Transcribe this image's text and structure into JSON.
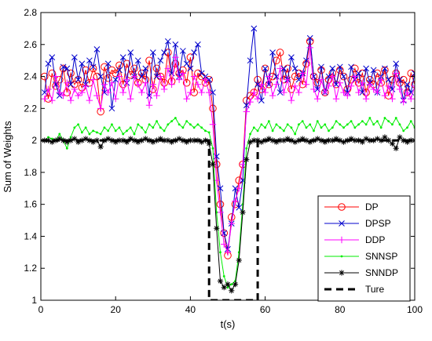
{
  "chart_data": {
    "type": "line",
    "title": "",
    "xlabel": "t(s)",
    "ylabel": "Sum of Weights",
    "xlim": [
      0,
      100
    ],
    "ylim": [
      1,
      2.8
    ],
    "x_ticks": [
      0,
      20,
      40,
      60,
      80,
      100
    ],
    "y_ticks": [
      1,
      1.2,
      1.4,
      1.6,
      1.8,
      2,
      2.2,
      2.4,
      2.6,
      2.8
    ],
    "grid": false,
    "legend_position": "bottom-right",
    "x": [
      1,
      2,
      3,
      4,
      5,
      6,
      7,
      8,
      9,
      10,
      11,
      12,
      13,
      14,
      15,
      16,
      17,
      18,
      19,
      20,
      21,
      22,
      23,
      24,
      25,
      26,
      27,
      28,
      29,
      30,
      31,
      32,
      33,
      34,
      35,
      36,
      37,
      38,
      39,
      40,
      41,
      42,
      43,
      44,
      45,
      46,
      47,
      48,
      49,
      50,
      51,
      52,
      53,
      54,
      55,
      56,
      57,
      58,
      59,
      60,
      61,
      62,
      63,
      64,
      65,
      66,
      67,
      68,
      69,
      70,
      71,
      72,
      73,
      74,
      75,
      76,
      77,
      78,
      79,
      80,
      81,
      82,
      83,
      84,
      85,
      86,
      87,
      88,
      89,
      90,
      91,
      92,
      93,
      94,
      95,
      96,
      97,
      98,
      99,
      100
    ],
    "series": [
      {
        "name": "DP",
        "color": "#ff0000",
        "marker": "circle",
        "line_style": "solid",
        "values": [
          2.4,
          2.26,
          2.42,
          2.34,
          2.38,
          2.45,
          2.3,
          2.42,
          2.35,
          2.38,
          2.33,
          2.44,
          2.36,
          2.45,
          2.4,
          2.18,
          2.46,
          2.39,
          2.44,
          2.42,
          2.47,
          2.35,
          2.48,
          2.41,
          2.45,
          2.36,
          2.42,
          2.38,
          2.5,
          2.32,
          2.45,
          2.4,
          2.36,
          2.55,
          2.37,
          2.48,
          2.42,
          2.44,
          2.36,
          2.52,
          2.3,
          2.42,
          2.4,
          2.36,
          2.38,
          2.2,
          1.85,
          1.6,
          1.42,
          1.28,
          1.52,
          1.6,
          1.75,
          1.85,
          2.25,
          2.28,
          2.3,
          2.38,
          2.32,
          2.45,
          2.35,
          2.4,
          2.5,
          2.55,
          2.38,
          2.45,
          2.32,
          2.4,
          2.42,
          2.35,
          2.48,
          2.62,
          2.4,
          2.36,
          2.44,
          2.3,
          2.38,
          2.42,
          2.35,
          2.44,
          2.4,
          2.32,
          2.38,
          2.45,
          2.36,
          2.42,
          2.3,
          2.38,
          2.35,
          2.42,
          2.36,
          2.44,
          2.28,
          2.38,
          2.42,
          2.36,
          2.38,
          2.3,
          2.42,
          2.35
        ]
      },
      {
        "name": "DPSP",
        "color": "#0000cc",
        "marker": "x",
        "line_style": "solid",
        "values": [
          2.3,
          2.48,
          2.52,
          2.35,
          2.28,
          2.46,
          2.45,
          2.35,
          2.52,
          2.38,
          2.48,
          2.35,
          2.5,
          2.46,
          2.57,
          2.4,
          2.3,
          2.48,
          2.2,
          2.38,
          2.44,
          2.52,
          2.36,
          2.55,
          2.4,
          2.5,
          2.4,
          2.45,
          2.28,
          2.55,
          2.4,
          2.5,
          2.55,
          2.62,
          2.42,
          2.6,
          2.4,
          2.56,
          2.48,
          2.45,
          2.55,
          2.6,
          2.42,
          2.4,
          2.38,
          2.3,
          1.9,
          1.7,
          1.42,
          1.32,
          1.48,
          1.7,
          1.58,
          1.75,
          2.22,
          2.5,
          2.7,
          2.35,
          2.25,
          2.45,
          2.35,
          2.55,
          2.4,
          2.3,
          2.45,
          2.38,
          2.52,
          2.45,
          2.38,
          2.42,
          2.5,
          2.64,
          2.4,
          2.32,
          2.46,
          2.3,
          2.4,
          2.45,
          2.35,
          2.46,
          2.4,
          2.3,
          2.46,
          2.38,
          2.42,
          2.3,
          2.45,
          2.36,
          2.44,
          2.3,
          2.4,
          2.45,
          2.38,
          2.32,
          2.48,
          2.38,
          2.25,
          2.35,
          2.3,
          2.42
        ]
      },
      {
        "name": "DDP",
        "color": "#ff00ff",
        "marker": "plus",
        "line_style": "solid",
        "values": [
          2.26,
          2.32,
          2.25,
          2.4,
          2.3,
          2.28,
          2.36,
          2.25,
          2.32,
          2.28,
          2.3,
          2.34,
          2.25,
          2.38,
          2.28,
          2.2,
          2.35,
          2.3,
          2.36,
          2.26,
          2.4,
          2.3,
          2.38,
          2.26,
          2.4,
          2.35,
          2.3,
          2.36,
          2.22,
          2.35,
          2.28,
          2.4,
          2.32,
          2.45,
          2.35,
          2.52,
          2.38,
          2.42,
          2.26,
          2.3,
          2.4,
          2.35,
          2.3,
          2.38,
          2.3,
          2.1,
          1.75,
          1.55,
          1.35,
          1.3,
          1.48,
          1.62,
          1.7,
          1.85,
          2.18,
          2.24,
          2.3,
          2.26,
          2.35,
          2.3,
          2.4,
          2.28,
          2.35,
          2.45,
          2.3,
          2.38,
          2.25,
          2.34,
          2.3,
          2.42,
          2.35,
          2.58,
          2.32,
          2.26,
          2.38,
          2.3,
          2.34,
          2.4,
          2.26,
          2.36,
          2.3,
          2.28,
          2.34,
          2.4,
          2.3,
          2.36,
          2.26,
          2.35,
          2.32,
          2.3,
          2.38,
          2.28,
          2.34,
          2.26,
          2.42,
          2.32,
          2.24,
          2.3,
          2.26,
          2.34
        ]
      },
      {
        "name": "SNNSP",
        "color": "#00ee00",
        "marker": "dot",
        "line_style": "solid",
        "values": [
          2.0,
          2.02,
          2.01,
          2.0,
          2.04,
          2.0,
          1.95,
          2.02,
          2.08,
          2.1,
          2.05,
          2.08,
          2.04,
          2.06,
          2.05,
          2.04,
          2.08,
          2.06,
          2.1,
          2.06,
          2.08,
          2.04,
          2.06,
          2.08,
          2.04,
          2.1,
          2.08,
          2.05,
          2.1,
          2.08,
          2.12,
          2.08,
          2.06,
          2.1,
          2.12,
          2.14,
          2.1,
          2.08,
          2.12,
          2.1,
          2.08,
          2.1,
          2.08,
          2.06,
          2.05,
          1.95,
          1.55,
          1.3,
          1.15,
          1.08,
          1.1,
          1.12,
          1.3,
          1.6,
          1.95,
          2.04,
          2.08,
          2.06,
          2.1,
          2.08,
          2.12,
          2.06,
          2.1,
          2.08,
          2.06,
          2.1,
          2.08,
          2.04,
          2.1,
          2.12,
          2.08,
          2.1,
          2.06,
          2.12,
          2.08,
          2.1,
          2.06,
          2.08,
          2.12,
          2.1,
          2.08,
          2.1,
          2.12,
          2.08,
          2.1,
          2.12,
          2.1,
          2.14,
          2.1,
          2.12,
          2.08,
          2.14,
          2.12,
          2.1,
          2.14,
          2.1,
          2.06,
          2.08,
          2.12,
          2.08
        ]
      },
      {
        "name": "SNNDP",
        "color": "#000000",
        "marker": "star",
        "line_style": "solid",
        "values": [
          2.0,
          2.0,
          1.99,
          2.0,
          2.01,
          2.0,
          1.99,
          2.0,
          2.01,
          1.99,
          2.0,
          2.01,
          2.0,
          1.99,
          2.0,
          1.96,
          2.0,
          2.01,
          2.0,
          1.99,
          2.0,
          2.0,
          1.99,
          2.01,
          2.0,
          1.99,
          2.0,
          2.01,
          2.0,
          1.99,
          2.0,
          2.01,
          2.0,
          2.0,
          1.99,
          2.0,
          2.01,
          2.0,
          1.99,
          2.0,
          2.0,
          2.0,
          1.99,
          2.0,
          1.98,
          1.85,
          1.45,
          1.12,
          1.08,
          1.1,
          1.06,
          1.1,
          1.25,
          1.55,
          1.88,
          1.99,
          2.0,
          2.0,
          1.99,
          2.0,
          2.01,
          2.0,
          1.99,
          2.0,
          2.0,
          2.01,
          2.0,
          1.99,
          2.0,
          2.01,
          2.0,
          1.99,
          2.0,
          2.01,
          2.0,
          1.99,
          2.0,
          2.0,
          2.01,
          2.0,
          1.99,
          2.0,
          2.01,
          2.0,
          2.0,
          1.99,
          2.01,
          2.0,
          2.0,
          2.01,
          2.0,
          2.02,
          2.0,
          1.98,
          1.95,
          2.02,
          2.0,
          1.99,
          2.0,
          2.0
        ]
      },
      {
        "name": "Ture",
        "color": "#000000",
        "marker": "none",
        "line_style": "dashed",
        "points": [
          [
            0,
            2
          ],
          [
            45,
            2
          ],
          [
            45,
            1
          ],
          [
            58,
            1
          ],
          [
            58,
            2
          ],
          [
            100,
            2
          ]
        ]
      }
    ]
  }
}
